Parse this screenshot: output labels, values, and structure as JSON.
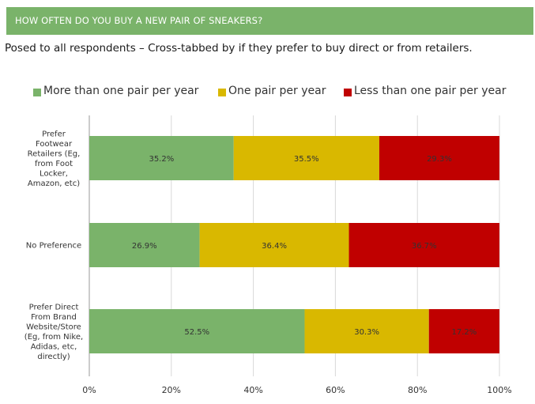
{
  "header": {
    "title": "HOW OFTEN DO YOU BUY A NEW PAIR OF SNEAKERS?"
  },
  "subtitle": "Posed to all respondents – Cross-tabbed by if they prefer to buy direct or from retailers.",
  "colors": {
    "header_bg": "#7ab36a",
    "green": "#7ab36a",
    "yellow": "#d9b800",
    "red": "#c00000"
  },
  "chart_data": {
    "type": "bar",
    "orientation": "horizontal",
    "stacked": true,
    "categories": [
      "Prefer Footwear Retailers (Eg, from Foot Locker, Amazon, etc)",
      "No Preference",
      "Prefer Direct From Brand Website/Store (Eg, from Nike, Adidas, etc, directly)"
    ],
    "category_lines": [
      [
        "Prefer",
        "Footwear",
        "Retailers (Eg,",
        "from Foot",
        "Locker,",
        "Amazon, etc)"
      ],
      [
        "No Preference"
      ],
      [
        "Prefer Direct",
        "From Brand",
        "Website/Store",
        "(Eg, from Nike,",
        "Adidas, etc,",
        "directly)"
      ]
    ],
    "series": [
      {
        "name": "More than one pair per year",
        "color": "#7ab36a",
        "values": [
          35.2,
          26.9,
          52.5
        ]
      },
      {
        "name": "One pair per year",
        "color": "#d9b800",
        "values": [
          35.5,
          36.4,
          30.3
        ]
      },
      {
        "name": "Less than one pair per year",
        "color": "#c00000",
        "values": [
          29.3,
          36.7,
          17.2
        ]
      }
    ],
    "value_labels": [
      [
        "35.2%",
        "26.9%",
        "52.5%"
      ],
      [
        "35.5%",
        "36.4%",
        "30.3%"
      ],
      [
        "29.3%",
        "36.7%",
        "17.2%"
      ]
    ],
    "xlim": [
      0,
      100
    ],
    "xticks": [
      0,
      20,
      40,
      60,
      80,
      100
    ],
    "xtick_labels": [
      "0%",
      "20%",
      "40%",
      "60%",
      "80%",
      "100%"
    ],
    "legend_position": "top",
    "grid": true
  }
}
